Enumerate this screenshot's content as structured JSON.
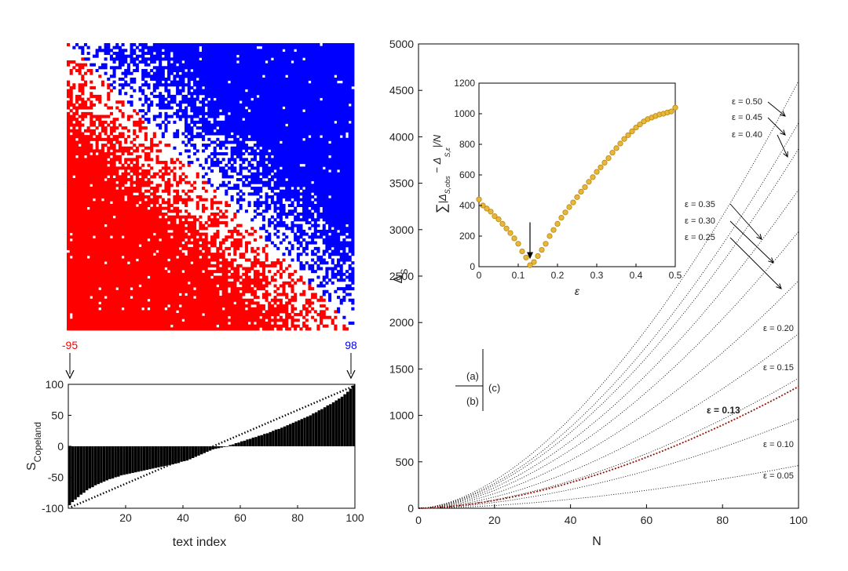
{
  "chart_data": [
    {
      "id": "matrix",
      "type": "heatmap",
      "size": 100,
      "colors": {
        "positive": "#ff0000",
        "negative": "#0000ff",
        "neutral": "#ffffff"
      },
      "label_min": "-95",
      "label_max": "98",
      "label_min_color": "#ff0000",
      "label_max_color": "#0000ff",
      "note": "pairwise comparison matrix, texts sorted by Copeland score; red below diagonal, blue above"
    },
    {
      "id": "copeland",
      "type": "bar",
      "ylabel": "S",
      "ylabel_sub": "Copeland",
      "xlabel": "text index",
      "xlim": [
        0,
        100
      ],
      "ylim": [
        -100,
        100
      ],
      "xticks": [
        20,
        40,
        60,
        80,
        100
      ],
      "yticks": [
        -100,
        -50,
        0,
        50,
        100
      ],
      "bar_color": "#000000",
      "reference_line": {
        "from": [
          1,
          -98
        ],
        "to": [
          100,
          98
        ],
        "style": "dotted"
      },
      "x": [
        1,
        2,
        3,
        4,
        5,
        6,
        7,
        8,
        9,
        10,
        11,
        12,
        13,
        14,
        15,
        16,
        17,
        18,
        19,
        20,
        21,
        22,
        23,
        24,
        25,
        26,
        27,
        28,
        29,
        30,
        31,
        32,
        33,
        34,
        35,
        36,
        37,
        38,
        39,
        40,
        41,
        42,
        43,
        44,
        45,
        46,
        47,
        48,
        49,
        50,
        51,
        52,
        53,
        54,
        55,
        56,
        57,
        58,
        59,
        60,
        61,
        62,
        63,
        64,
        65,
        66,
        67,
        68,
        69,
        70,
        71,
        72,
        73,
        74,
        75,
        76,
        77,
        78,
        79,
        80,
        81,
        82,
        83,
        84,
        85,
        86,
        87,
        88,
        89,
        90,
        91,
        92,
        93,
        94,
        95,
        96,
        97,
        98,
        99,
        100
      ],
      "values": [
        -95,
        -90,
        -86,
        -82,
        -78,
        -75,
        -71,
        -68,
        -66,
        -63,
        -61,
        -59,
        -57,
        -55,
        -53,
        -52,
        -50,
        -49,
        -47,
        -46,
        -45,
        -44,
        -43,
        -42,
        -41,
        -40,
        -39,
        -38,
        -37,
        -36,
        -35,
        -34,
        -33,
        -32,
        -31,
        -30,
        -29,
        -28,
        -27,
        -25,
        -24,
        -23,
        -21,
        -19,
        -17,
        -15,
        -13,
        -11,
        -9,
        -7,
        -5,
        -4,
        -3,
        -2,
        -1,
        0,
        2,
        3,
        5,
        6,
        8,
        9,
        11,
        12,
        14,
        15,
        17,
        18,
        20,
        21,
        23,
        25,
        27,
        28,
        30,
        32,
        34,
        36,
        38,
        40,
        42,
        44,
        46,
        48,
        50,
        53,
        55,
        58,
        60,
        63,
        66,
        68,
        71,
        74,
        77,
        80,
        84,
        88,
        93,
        98
      ]
    },
    {
      "id": "delta",
      "type": "line",
      "xlabel": "N",
      "ylabel": "Δ",
      "ylabel_sub": "S",
      "xlim": [
        0,
        100
      ],
      "ylim": [
        0,
        5000
      ],
      "xticks": [
        0,
        20,
        40,
        60,
        80,
        100
      ],
      "yticks": [
        0,
        500,
        1000,
        1500,
        2000,
        2500,
        3000,
        3500,
        4000,
        4500,
        5000
      ],
      "series": [
        {
          "name": "ε = 0.05",
          "end": 460
        },
        {
          "name": "ε = 0.10",
          "end": 960
        },
        {
          "name": "ε = 0.15",
          "end": 1400
        },
        {
          "name": "ε = 0.20",
          "end": 1880
        },
        {
          "name": "ε = 0.25",
          "end": 2450
        },
        {
          "name": "ε = 0.30",
          "end": 2980
        },
        {
          "name": "ε = 0.35",
          "end": 3430
        },
        {
          "name": "ε = 0.40",
          "end": 3870
        },
        {
          "name": "ε = 0.45",
          "end": 4150
        },
        {
          "name": "ε = 0.50",
          "end": 4600
        }
      ],
      "highlight": {
        "name": "ε = 0.13",
        "end": 1310,
        "color": "#c0392b"
      },
      "panel_labels": [
        "(a)",
        "(b)",
        "(c)"
      ]
    },
    {
      "id": "inset",
      "type": "scatter",
      "xlabel": "ε",
      "ylabel": "∑|Δ_{S,obs} − Δ_{S,ε}|/N",
      "ylabel_parts": {
        "sum": "∑",
        "left": "|Δ",
        "sub1": "S,obs",
        "mid": " − Δ",
        "sub2": "S,ε",
        "right": "|/N"
      },
      "xlim": [
        0,
        0.5
      ],
      "ylim": [
        0,
        1200
      ],
      "xticks": [
        0,
        0.1,
        0.2,
        0.3,
        0.4,
        0.5
      ],
      "yticks": [
        0,
        200,
        400,
        600,
        800,
        1000,
        1200
      ],
      "marker_color": "#e8b63a",
      "marker_edge": "#b8860b",
      "arrow_at": 0.13,
      "points": [
        [
          0.0,
          440
        ],
        [
          0.01,
          400
        ],
        [
          0.02,
          380
        ],
        [
          0.03,
          360
        ],
        [
          0.04,
          330
        ],
        [
          0.05,
          310
        ],
        [
          0.06,
          280
        ],
        [
          0.07,
          250
        ],
        [
          0.08,
          220
        ],
        [
          0.09,
          185
        ],
        [
          0.1,
          150
        ],
        [
          0.11,
          100
        ],
        [
          0.12,
          60
        ],
        [
          0.13,
          10
        ],
        [
          0.14,
          30
        ],
        [
          0.15,
          70
        ],
        [
          0.16,
          110
        ],
        [
          0.17,
          150
        ],
        [
          0.18,
          200
        ],
        [
          0.19,
          240
        ],
        [
          0.2,
          280
        ],
        [
          0.21,
          320
        ],
        [
          0.22,
          355
        ],
        [
          0.23,
          390
        ],
        [
          0.24,
          420
        ],
        [
          0.25,
          455
        ],
        [
          0.26,
          490
        ],
        [
          0.27,
          520
        ],
        [
          0.28,
          555
        ],
        [
          0.29,
          585
        ],
        [
          0.3,
          620
        ],
        [
          0.31,
          650
        ],
        [
          0.32,
          680
        ],
        [
          0.33,
          710
        ],
        [
          0.34,
          745
        ],
        [
          0.35,
          775
        ],
        [
          0.36,
          805
        ],
        [
          0.37,
          835
        ],
        [
          0.38,
          860
        ],
        [
          0.39,
          885
        ],
        [
          0.4,
          910
        ],
        [
          0.41,
          930
        ],
        [
          0.42,
          950
        ],
        [
          0.43,
          965
        ],
        [
          0.44,
          975
        ],
        [
          0.45,
          985
        ],
        [
          0.46,
          995
        ],
        [
          0.47,
          1000
        ],
        [
          0.48,
          1008
        ],
        [
          0.49,
          1015
        ],
        [
          0.5,
          1040
        ]
      ]
    }
  ],
  "highlight_label": "ε = 0.13"
}
